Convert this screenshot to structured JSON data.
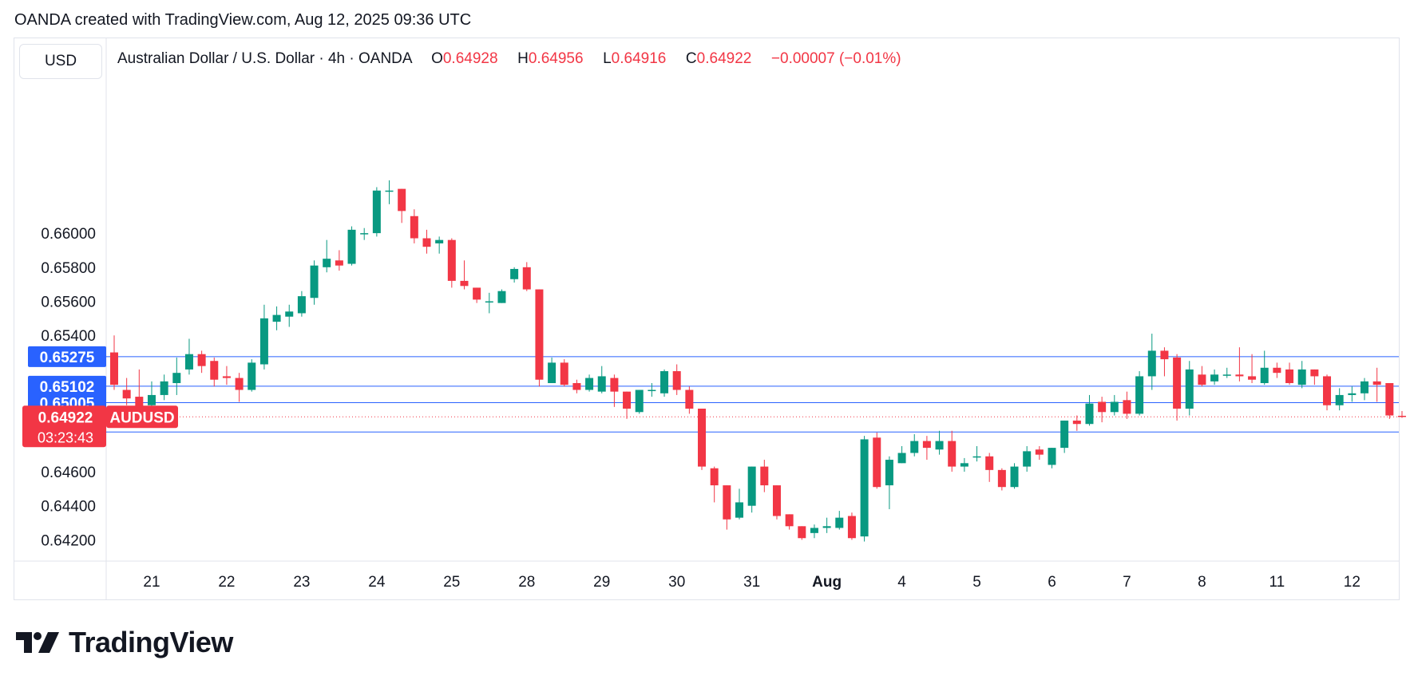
{
  "attribution": "OANDA created with TradingView.com, Aug 12, 2025 09:36 UTC",
  "currency": "USD",
  "legend": {
    "title": "Australian Dollar / U.S. Dollar · 4h · OANDA",
    "o_key": "O",
    "o_val": "0.64928",
    "h_key": "H",
    "h_val": "0.64956",
    "l_key": "L",
    "l_val": "0.64916",
    "c_key": "C",
    "c_val": "0.64922",
    "change": "−0.00007 (−0.01%)"
  },
  "logo_text": "TradingView",
  "logo_icon": "tradingview-logo-icon",
  "colors": {
    "up": "#089981",
    "down": "#f23645",
    "hline": "#2962ff",
    "axis": "#131722",
    "grid_border": "#e0e3eb"
  },
  "chart_data": {
    "type": "candlestick",
    "symbol": "AUDUSD",
    "timeframe": "4h",
    "ylim": [
      0.6408,
      0.669
    ],
    "y_ticks": [
      "0.66000",
      "0.65800",
      "0.65600",
      "0.65400",
      "0.64600",
      "0.64400",
      "0.64200"
    ],
    "x_ticks": [
      {
        "label": "21",
        "index": 3
      },
      {
        "label": "22",
        "index": 9
      },
      {
        "label": "23",
        "index": 15
      },
      {
        "label": "24",
        "index": 21
      },
      {
        "label": "25",
        "index": 27
      },
      {
        "label": "28",
        "index": 33
      },
      {
        "label": "29",
        "index": 39
      },
      {
        "label": "30",
        "index": 45
      },
      {
        "label": "31",
        "index": 51
      },
      {
        "label": "Aug",
        "index": 57,
        "bold": true
      },
      {
        "label": "4",
        "index": 63
      },
      {
        "label": "5",
        "index": 69
      },
      {
        "label": "6",
        "index": 75
      },
      {
        "label": "7",
        "index": 81
      },
      {
        "label": "8",
        "index": 87
      },
      {
        "label": "11",
        "index": 93
      },
      {
        "label": "12",
        "index": 99
      }
    ],
    "horizontal_lines": [
      {
        "value": 0.65275,
        "label": "0.65275"
      },
      {
        "value": 0.65102,
        "label": "0.65102"
      },
      {
        "value": 0.65005,
        "label": "0.65005"
      },
      {
        "value": 0.64833,
        "label": "0.64833"
      }
    ],
    "current_price": {
      "value": 0.64922,
      "label": "0.64922",
      "countdown": "03:23:43",
      "symbol_tag": "AUDUSD"
    },
    "candles": [
      [
        0.653,
        0.6511,
        0.654,
        0.6508
      ],
      [
        0.6508,
        0.6503,
        0.6515,
        0.6499
      ],
      [
        0.6504,
        0.6496,
        0.652,
        0.6493
      ],
      [
        0.6499,
        0.6505,
        0.6513,
        0.6496
      ],
      [
        0.6505,
        0.6513,
        0.6517,
        0.6502
      ],
      [
        0.6512,
        0.6518,
        0.6527,
        0.6505
      ],
      [
        0.652,
        0.6529,
        0.6538,
        0.6517
      ],
      [
        0.6529,
        0.6522,
        0.6531,
        0.6518
      ],
      [
        0.6525,
        0.6514,
        0.6527,
        0.651
      ],
      [
        0.6516,
        0.6515,
        0.6522,
        0.6511
      ],
      [
        0.6515,
        0.6508,
        0.6518,
        0.6501
      ],
      [
        0.6508,
        0.6524,
        0.6526,
        0.6507
      ],
      [
        0.6523,
        0.655,
        0.6558,
        0.652
      ],
      [
        0.6548,
        0.6552,
        0.6557,
        0.6543
      ],
      [
        0.6551,
        0.6554,
        0.6558,
        0.6545
      ],
      [
        0.6553,
        0.6563,
        0.6566,
        0.6551
      ],
      [
        0.6562,
        0.6581,
        0.6584,
        0.6558
      ],
      [
        0.658,
        0.6585,
        0.6596,
        0.6577
      ],
      [
        0.6584,
        0.6581,
        0.659,
        0.6578
      ],
      [
        0.6582,
        0.6602,
        0.6604,
        0.6581
      ],
      [
        0.66,
        0.66,
        0.6603,
        0.6596
      ],
      [
        0.66,
        0.6625,
        0.6627,
        0.6598
      ],
      [
        0.6625,
        0.6625,
        0.6631,
        0.6617
      ],
      [
        0.6626,
        0.6613,
        0.6626,
        0.6606
      ],
      [
        0.661,
        0.6597,
        0.6614,
        0.6594
      ],
      [
        0.6597,
        0.6592,
        0.6602,
        0.6588
      ],
      [
        0.6594,
        0.6596,
        0.6598,
        0.6588
      ],
      [
        0.6596,
        0.6572,
        0.6597,
        0.6568
      ],
      [
        0.6572,
        0.6569,
        0.6584,
        0.6567
      ],
      [
        0.6568,
        0.6561,
        0.6568,
        0.6559
      ],
      [
        0.656,
        0.656,
        0.6565,
        0.6553
      ],
      [
        0.6559,
        0.6566,
        0.6567,
        0.6559
      ],
      [
        0.6573,
        0.6579,
        0.658,
        0.6571
      ],
      [
        0.658,
        0.6567,
        0.6583,
        0.6566
      ],
      [
        0.6567,
        0.6514,
        0.6567,
        0.651
      ],
      [
        0.6512,
        0.6524,
        0.6527,
        0.6512
      ],
      [
        0.6524,
        0.6511,
        0.6526,
        0.651
      ],
      [
        0.6512,
        0.6508,
        0.6514,
        0.6506
      ],
      [
        0.6508,
        0.6515,
        0.6517,
        0.6507
      ],
      [
        0.6507,
        0.6516,
        0.6522,
        0.6506
      ],
      [
        0.6515,
        0.6507,
        0.6517,
        0.6498
      ],
      [
        0.6507,
        0.6497,
        0.6507,
        0.6491
      ],
      [
        0.6495,
        0.6508,
        0.6508,
        0.6494
      ],
      [
        0.6508,
        0.6508,
        0.6512,
        0.6504
      ],
      [
        0.6506,
        0.6519,
        0.652,
        0.6504
      ],
      [
        0.6519,
        0.6508,
        0.6523,
        0.6505
      ],
      [
        0.6508,
        0.6497,
        0.651,
        0.6494
      ],
      [
        0.6497,
        0.6463,
        0.6497,
        0.6461
      ],
      [
        0.6462,
        0.6452,
        0.6463,
        0.6442
      ],
      [
        0.6452,
        0.6432,
        0.6452,
        0.6426
      ],
      [
        0.6433,
        0.6442,
        0.645,
        0.6432
      ],
      [
        0.644,
        0.6463,
        0.6463,
        0.6436
      ],
      [
        0.6463,
        0.6452,
        0.6467,
        0.6448
      ],
      [
        0.6452,
        0.6434,
        0.6452,
        0.6432
      ],
      [
        0.6435,
        0.6428,
        0.6435,
        0.6426
      ],
      [
        0.6428,
        0.6421,
        0.6428,
        0.642
      ],
      [
        0.6424,
        0.6427,
        0.6429,
        0.6421
      ],
      [
        0.6427,
        0.6428,
        0.6433,
        0.6424
      ],
      [
        0.6427,
        0.6433,
        0.6437,
        0.6426
      ],
      [
        0.6434,
        0.6421,
        0.6436,
        0.642
      ],
      [
        0.6422,
        0.6479,
        0.6481,
        0.6419
      ],
      [
        0.648,
        0.6451,
        0.6483,
        0.645
      ],
      [
        0.6452,
        0.6467,
        0.6469,
        0.6438
      ],
      [
        0.6465,
        0.6471,
        0.6475,
        0.6465
      ],
      [
        0.6471,
        0.6478,
        0.6482,
        0.6469
      ],
      [
        0.6478,
        0.6474,
        0.6481,
        0.6467
      ],
      [
        0.6473,
        0.6478,
        0.6484,
        0.647
      ],
      [
        0.6478,
        0.6463,
        0.6484,
        0.646
      ],
      [
        0.6463,
        0.6465,
        0.6468,
        0.646
      ],
      [
        0.6469,
        0.6469,
        0.6475,
        0.6466
      ],
      [
        0.6469,
        0.6461,
        0.6471,
        0.6454
      ],
      [
        0.6461,
        0.6451,
        0.6462,
        0.6449
      ],
      [
        0.6451,
        0.6463,
        0.6465,
        0.645
      ],
      [
        0.6463,
        0.6472,
        0.6475,
        0.646
      ],
      [
        0.6473,
        0.647,
        0.6475,
        0.6467
      ],
      [
        0.6464,
        0.6474,
        0.6474,
        0.6462
      ],
      [
        0.6474,
        0.649,
        0.649,
        0.6471
      ],
      [
        0.649,
        0.6488,
        0.6493,
        0.6484
      ],
      [
        0.6488,
        0.65,
        0.6505,
        0.6487
      ],
      [
        0.6501,
        0.6495,
        0.6504,
        0.6489
      ],
      [
        0.6495,
        0.6501,
        0.6505,
        0.6493
      ],
      [
        0.6502,
        0.6494,
        0.6507,
        0.6491
      ],
      [
        0.6494,
        0.6516,
        0.6519,
        0.6493
      ],
      [
        0.6516,
        0.6531,
        0.6541,
        0.6508
      ],
      [
        0.6531,
        0.6526,
        0.6533,
        0.6516
      ],
      [
        0.6527,
        0.6497,
        0.6529,
        0.649
      ],
      [
        0.6497,
        0.652,
        0.6525,
        0.6493
      ],
      [
        0.6517,
        0.6511,
        0.6522,
        0.651
      ],
      [
        0.6513,
        0.6517,
        0.652,
        0.6511
      ],
      [
        0.6517,
        0.6517,
        0.6521,
        0.6515
      ],
      [
        0.6517,
        0.6516,
        0.6533,
        0.6513
      ],
      [
        0.6516,
        0.6514,
        0.6529,
        0.6512
      ],
      [
        0.6512,
        0.6521,
        0.6531,
        0.6511
      ],
      [
        0.6521,
        0.6518,
        0.6524,
        0.6515
      ],
      [
        0.652,
        0.6512,
        0.6524,
        0.6511
      ],
      [
        0.6511,
        0.652,
        0.6525,
        0.6509
      ],
      [
        0.652,
        0.6516,
        0.652,
        0.6511
      ],
      [
        0.6516,
        0.6499,
        0.6517,
        0.6496
      ],
      [
        0.6499,
        0.6505,
        0.6509,
        0.6496
      ],
      [
        0.6505,
        0.6506,
        0.651,
        0.6501
      ],
      [
        0.6506,
        0.6513,
        0.6515,
        0.6502
      ],
      [
        0.6513,
        0.6511,
        0.6521,
        0.6501
      ],
      [
        0.6512,
        0.6493,
        0.6512,
        0.6491
      ],
      [
        0.64928,
        0.64922,
        0.64956,
        0.64916
      ]
    ]
  }
}
